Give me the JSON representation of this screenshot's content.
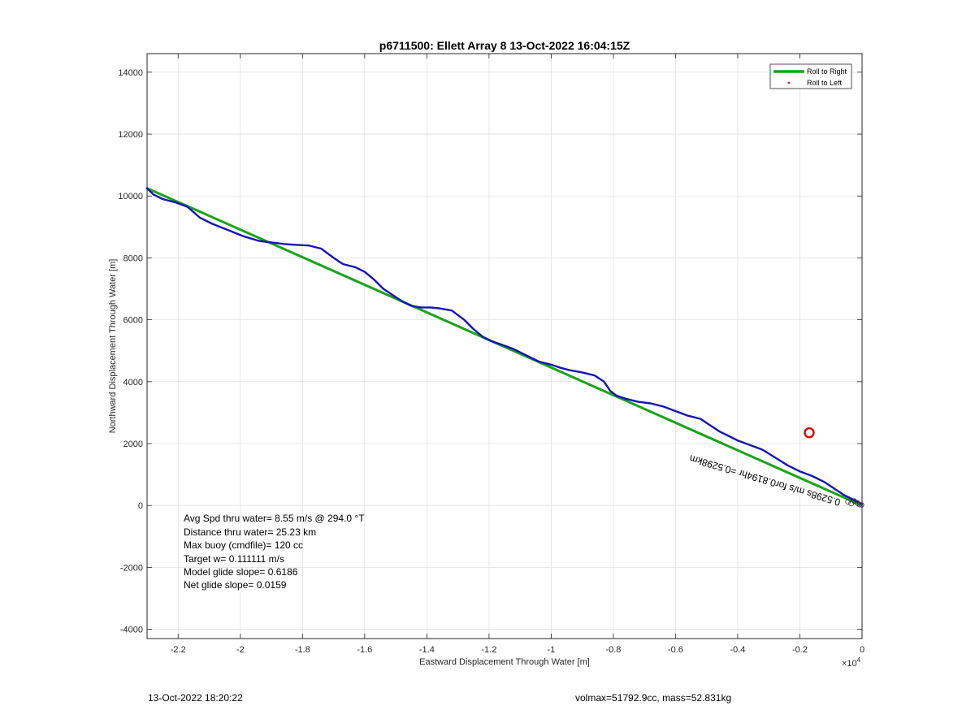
{
  "chart_data": {
    "type": "line",
    "title": "p6711500: Ellett Array 8 13-Oct-2022 16:04:15Z",
    "xlabel": "Eastward Displacement Through Water [m]",
    "ylabel": "Northward Displacement Through Water [m]",
    "x_exponent_label": "×10",
    "x_exponent_power": "4",
    "xlim": [
      -2.3,
      0
    ],
    "ylim": [
      -4300,
      14600
    ],
    "x_ticks": [
      -2.2,
      -2,
      -1.8,
      -1.6,
      -1.4,
      -1.2,
      -1,
      -0.8,
      -0.6,
      -0.4,
      -0.2,
      0
    ],
    "x_tick_labels": [
      "-2.2",
      "-2",
      "-1.8",
      "-1.6",
      "-1.4",
      "-1.2",
      "-1",
      "-0.8",
      "-0.6",
      "-0.4",
      "-0.2",
      "0"
    ],
    "y_ticks": [
      -4000,
      -2000,
      0,
      2000,
      4000,
      6000,
      8000,
      10000,
      12000,
      14000
    ],
    "y_tick_labels": [
      "-4000",
      "-2000",
      "0",
      "2000",
      "4000",
      "6000",
      "8000",
      "10000",
      "12000",
      "14000"
    ],
    "grid": true,
    "legend_position": "top-right",
    "series": [
      {
        "name": "Roll to Right",
        "color": "#1aa31a",
        "x": [
          -2.3,
          0
        ],
        "y": [
          10250,
          0
        ]
      },
      {
        "color": "#1414b4",
        "x": [
          -2.3,
          -2.28,
          -2.25,
          -2.21,
          -2.17,
          -2.13,
          -2.09,
          -2.04,
          -1.99,
          -1.94,
          -1.9,
          -1.86,
          -1.82,
          -1.78,
          -1.74,
          -1.72,
          -1.7,
          -1.67,
          -1.63,
          -1.6,
          -1.57,
          -1.54,
          -1.51,
          -1.48,
          -1.45,
          -1.42,
          -1.39,
          -1.36,
          -1.32,
          -1.28,
          -1.25,
          -1.22,
          -1.19,
          -1.16,
          -1.12,
          -1.08,
          -1.04,
          -1.0,
          -0.97,
          -0.94,
          -0.9,
          -0.86,
          -0.83,
          -0.81,
          -0.79,
          -0.76,
          -0.72,
          -0.68,
          -0.64,
          -0.6,
          -0.56,
          -0.52,
          -0.49,
          -0.46,
          -0.43,
          -0.4,
          -0.36,
          -0.32,
          -0.28,
          -0.24,
          -0.2,
          -0.16,
          -0.12,
          -0.09,
          -0.06,
          -0.04,
          -0.02,
          0.0
        ],
        "y": [
          10250,
          10050,
          9900,
          9800,
          9650,
          9300,
          9100,
          8900,
          8700,
          8550,
          8500,
          8450,
          8420,
          8400,
          8300,
          8150,
          8000,
          7800,
          7700,
          7550,
          7300,
          7000,
          6800,
          6600,
          6450,
          6400,
          6400,
          6370,
          6300,
          6000,
          5700,
          5450,
          5300,
          5200,
          5050,
          4850,
          4650,
          4550,
          4450,
          4370,
          4300,
          4200,
          4000,
          3700,
          3550,
          3450,
          3350,
          3300,
          3200,
          3050,
          2900,
          2800,
          2600,
          2400,
          2250,
          2100,
          1950,
          1800,
          1550,
          1300,
          1100,
          950,
          750,
          550,
          350,
          250,
          150,
          50
        ]
      }
    ],
    "legend": [
      {
        "label": "Roll to Right",
        "color": "#1aa31a"
      },
      {
        "label": "Roll to Left",
        "color": "#e01a1a"
      }
    ],
    "marker": {
      "x": -0.17,
      "y": 2350,
      "color": "#cc1111"
    },
    "rotated_annotation": {
      "text": "0.5298s m/s for0.8194hr =0.5298km",
      "anchor_x": -0.55,
      "anchor_y": 1500
    },
    "info_text": [
      "Avg Spd thru water=  8.55 m/s @ 294.0 °T",
      "Distance thru water= 25.23 km",
      "Max buoy (cmdfile)= 120 cc",
      "Target w= 0.111111 m/s",
      "Model glide slope= 0.6186",
      "Net glide slope= 0.0159"
    ]
  },
  "footer": {
    "left": "13-Oct-2022 18:20:22",
    "right": "volmax=51792.9cc, mass=52.831kg"
  }
}
